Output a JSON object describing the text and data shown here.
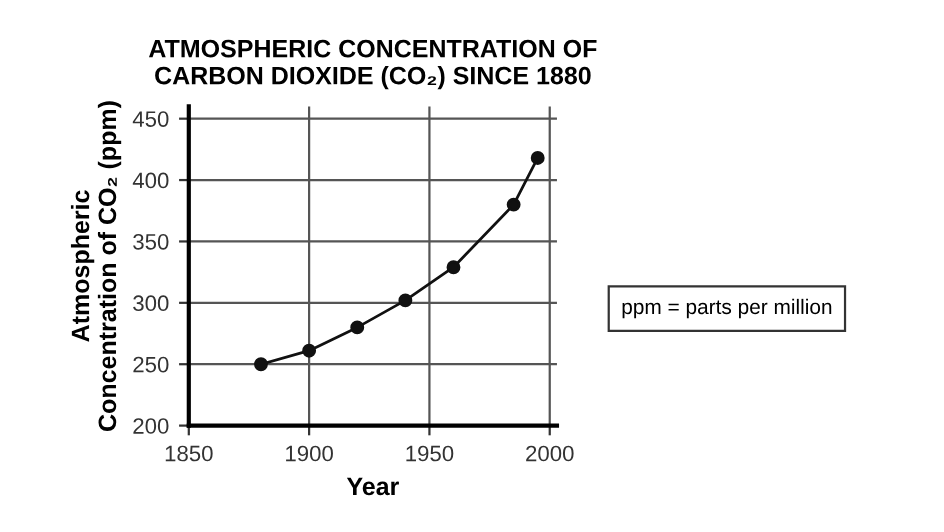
{
  "chart_data": {
    "type": "line",
    "title": "ATMOSPHERIC CONCENTRATION OF\nCARBON DIOXIDE (CO₂) SINCE 1880",
    "xlabel": "Year",
    "ylabel": "Atmospheric\nConcentration of CO₂ (ppm)",
    "x": [
      1880,
      1900,
      1920,
      1940,
      1960,
      1985,
      1995
    ],
    "series": [
      {
        "color": "#111111",
        "values": [
          250,
          261,
          280,
          302,
          329,
          380,
          418
        ]
      }
    ],
    "xlim": [
      1850,
      2003
    ],
    "xticks": [
      1850,
      1900,
      1950,
      2000
    ],
    "ylim": [
      200,
      460
    ],
    "yticks": [
      200,
      250,
      300,
      350,
      400,
      450
    ],
    "grid": true,
    "marker": "circle",
    "line_style": "solid",
    "legend": false,
    "annotations": [
      "ppm = parts per million"
    ]
  }
}
